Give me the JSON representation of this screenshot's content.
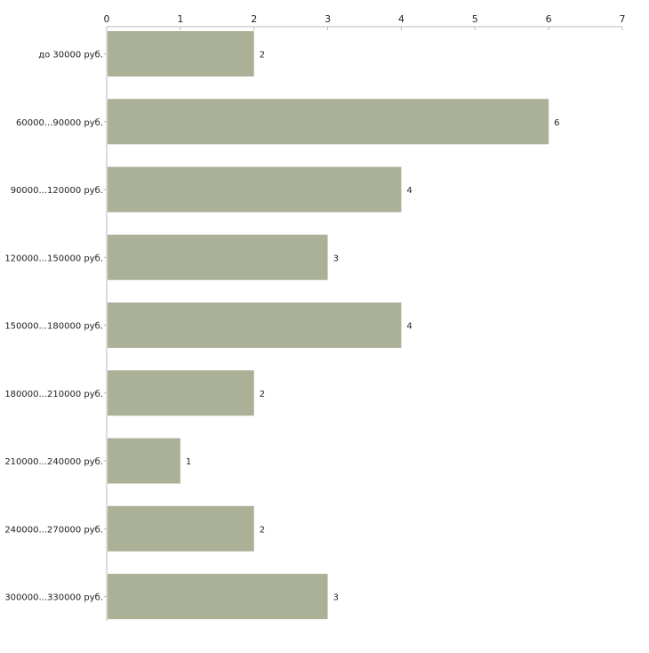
{
  "chart_data": {
    "type": "bar",
    "orientation": "horizontal",
    "title": "",
    "xlabel": "",
    "ylabel": "",
    "xlim": [
      0,
      7
    ],
    "xticks": [
      0,
      1,
      2,
      3,
      4,
      5,
      6,
      7
    ],
    "grid": false,
    "categories": [
      "до 30000 руб.",
      "60000...90000 руб.",
      "90000...120000 руб.",
      "120000...150000 руб.",
      "150000...180000 руб.",
      "180000...210000 руб.",
      "210000...240000 руб.",
      "240000...270000 руб.",
      "300000...330000 руб."
    ],
    "values": [
      2,
      6,
      4,
      3,
      4,
      2,
      1,
      2,
      3
    ],
    "colors": {
      "bar": "#abb197",
      "axis": "#bbbbbb",
      "text": "#222222"
    }
  }
}
